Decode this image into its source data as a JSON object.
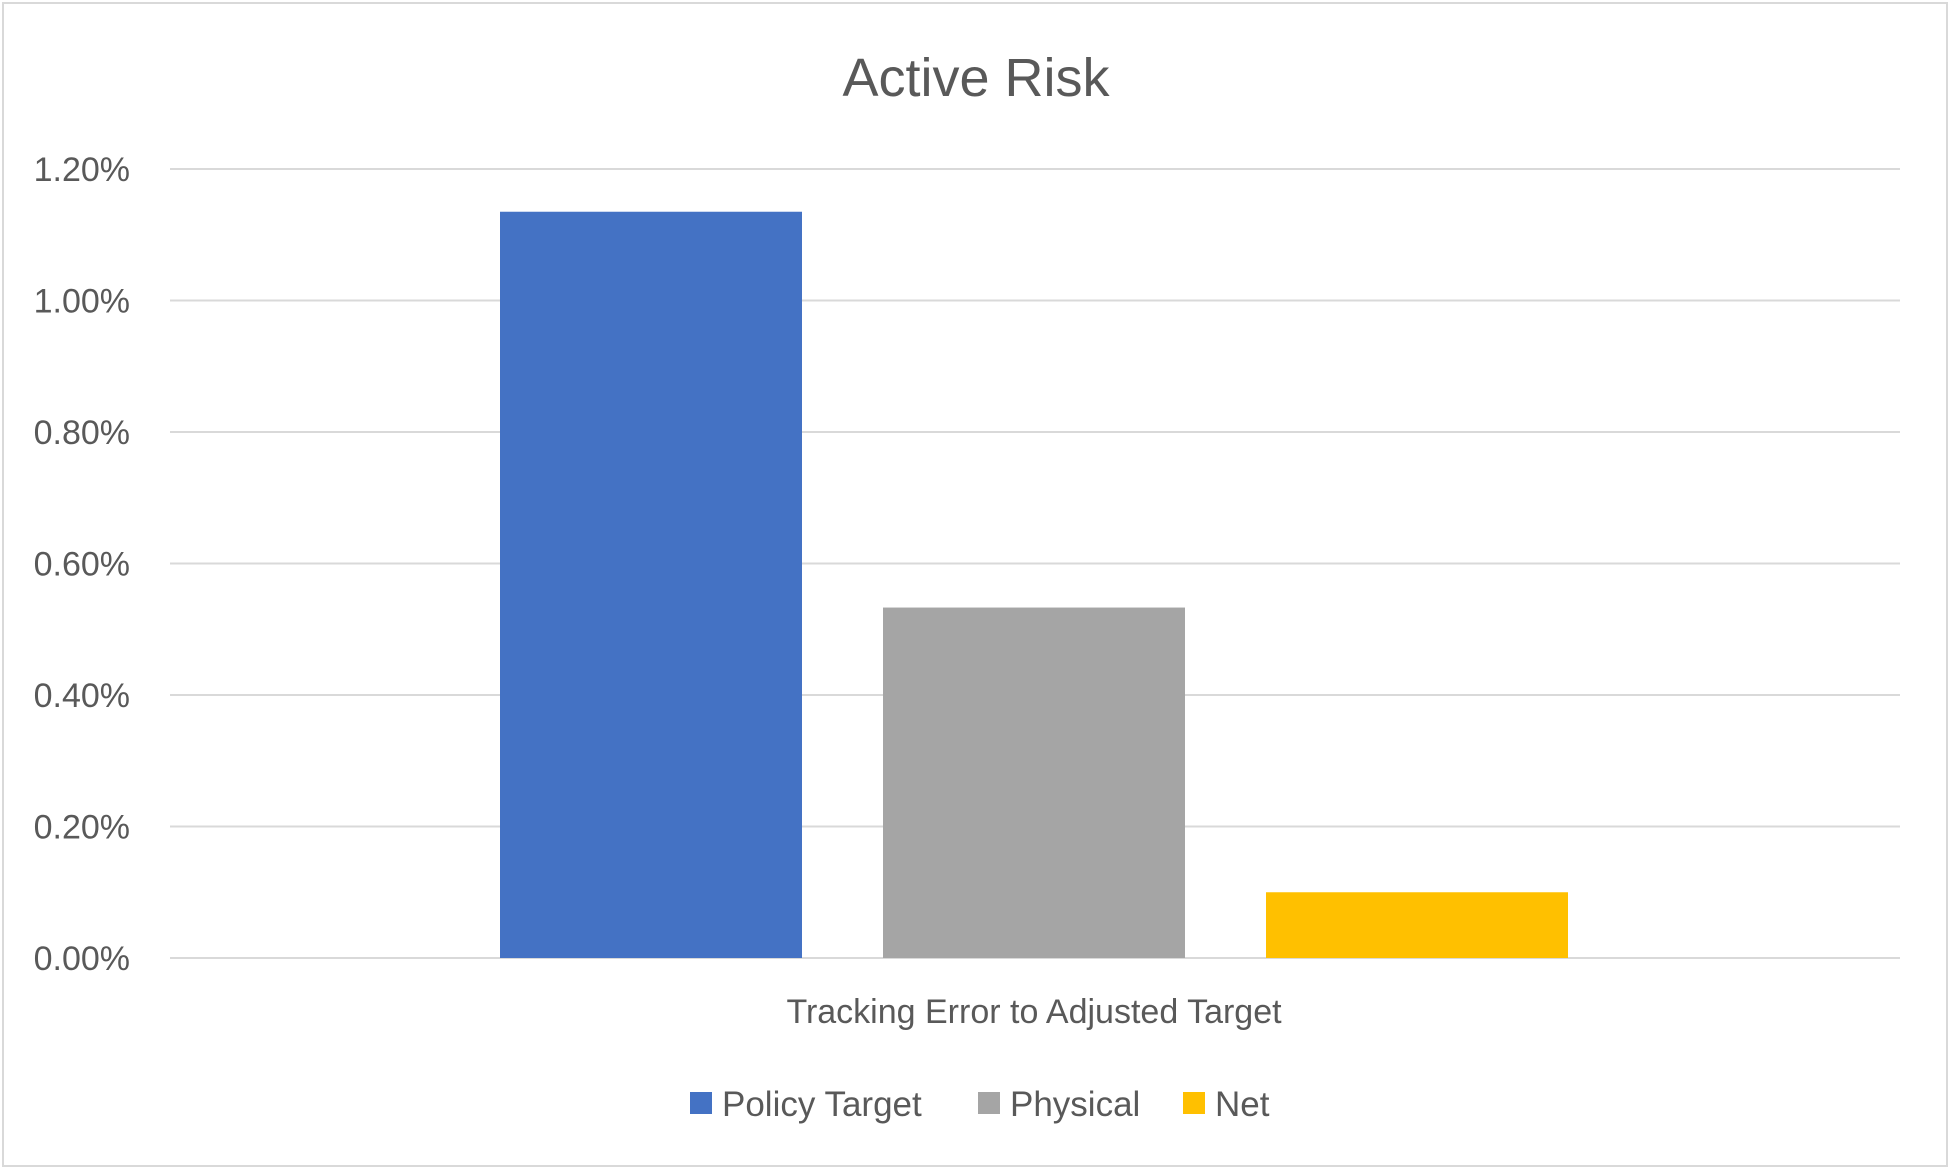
{
  "chart_data": {
    "type": "bar",
    "title": "Active Risk",
    "xlabel": "",
    "ylabel": "",
    "categories": [
      "Tracking Error to Adjusted Target"
    ],
    "series": [
      {
        "name": "Policy Target",
        "values": [
          0.01135
        ],
        "color": "#4472c4"
      },
      {
        "name": "Physical",
        "values": [
          0.00533
        ],
        "color": "#a5a5a5"
      },
      {
        "name": "Net",
        "values": [
          0.001
        ],
        "color": "#ffc000"
      }
    ],
    "ylim": [
      0,
      0.012
    ],
    "y_ticks": [
      0,
      0.002,
      0.004,
      0.006,
      0.008,
      0.01,
      0.012
    ],
    "y_tick_labels": [
      "0.00%",
      "0.20%",
      "0.40%",
      "0.60%",
      "0.80%",
      "1.00%",
      "1.20%"
    ],
    "grid": true,
    "legend_position": "bottom",
    "gridline_color": "#d9d9d9",
    "text_color": "#595959"
  }
}
